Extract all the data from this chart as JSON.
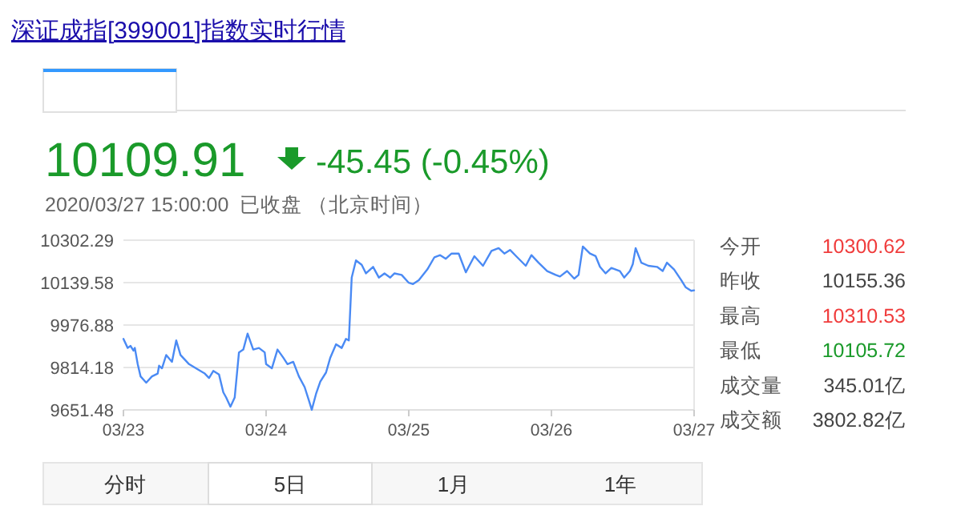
{
  "chart_data": {
    "type": "line",
    "title": "深证成指[399001]指数实时行情",
    "annotations": [
      "10109.91",
      "-45.45 (-0.45%)",
      "2020/03/27 15:00:00  已收盘 （北京时间）",
      "今开",
      "10300.62",
      "昨收",
      "10155.36",
      "最高",
      "10310.53",
      "最低",
      "10105.72",
      "成交量",
      "345.01亿",
      "成交额",
      "3802.82亿",
      "分时",
      "5日",
      "1月",
      "1年"
    ],
    "xlim": [
      "2020-03-23",
      "2020-03-27"
    ],
    "xticks": [
      {
        "value": "2020-03-23",
        "label": "03/23"
      },
      {
        "value": "2020-03-24",
        "label": "03/24"
      },
      {
        "value": "2020-03-25",
        "label": "03/25"
      },
      {
        "value": "2020-03-26",
        "label": "03/26"
      },
      {
        "value": "2020-03-27",
        "label": "03/27"
      }
    ],
    "ylim": [
      9651.48,
      10302.29
    ],
    "yticks": [
      {
        "value": 9651.48,
        "label": "9651.48"
      },
      {
        "value": 9814.18,
        "label": "9814.18"
      },
      {
        "value": 9976.88,
        "label": "9976.88"
      },
      {
        "value": 10139.58,
        "label": "10139.58"
      },
      {
        "value": 10302.29,
        "label": "10302.29"
      }
    ],
    "grid": "y",
    "marker": "none",
    "line_style": "solid",
    "series": [
      {
        "color": "#4a8af4",
        "x": [
          "2020-03-23T00:00",
          "2020-03-23T00:43",
          "2020-03-23T01:12",
          "2020-03-23T01:41",
          "2020-03-23T01:55",
          "2020-03-23T02:24",
          "2020-03-23T02:53",
          "2020-03-23T03:50",
          "2020-03-23T04:48",
          "2020-03-23T05:46",
          "2020-03-23T06:00",
          "2020-03-23T06:29",
          "2020-03-23T07:12",
          "2020-03-23T08:10",
          "2020-03-23T08:53",
          "2020-03-23T09:36",
          "2020-03-23T11:02",
          "2020-03-23T12:29",
          "2020-03-23T13:41",
          "2020-03-23T14:24",
          "2020-03-23T15:07",
          "2020-03-23T16:05",
          "2020-03-23T16:48",
          "2020-03-23T17:17",
          "2020-03-23T18:00",
          "2020-03-23T18:43",
          "2020-03-23T19:26",
          "2020-03-23T20:10",
          "2020-03-23T20:53",
          "2020-03-23T21:50",
          "2020-03-23T22:48",
          "2020-03-23T23:46",
          "2020-03-24T00:00",
          "2020-03-24T00:58",
          "2020-03-24T01:55",
          "2020-03-24T02:53",
          "2020-03-24T03:36",
          "2020-03-24T04:34",
          "2020-03-24T05:31",
          "2020-03-24T06:29",
          "2020-03-24T07:12",
          "2020-03-24T07:41",
          "2020-03-24T08:24",
          "2020-03-24T09:07",
          "2020-03-24T10:05",
          "2020-03-24T10:48",
          "2020-03-24T11:46",
          "2020-03-24T12:43",
          "2020-03-24T13:26",
          "2020-03-24T13:55",
          "2020-03-24T14:24",
          "2020-03-24T15:07",
          "2020-03-24T16:05",
          "2020-03-24T16:48",
          "2020-03-24T18:00",
          "2020-03-24T18:58",
          "2020-03-24T19:55",
          "2020-03-24T20:53",
          "2020-03-24T21:36",
          "2020-03-24T22:48",
          "2020-03-25T00:00",
          "2020-03-25T00:43",
          "2020-03-25T01:41",
          "2020-03-25T03:07",
          "2020-03-25T04:19",
          "2020-03-25T05:17",
          "2020-03-25T06:14",
          "2020-03-25T07:12",
          "2020-03-25T08:24",
          "2020-03-25T09:36",
          "2020-03-25T10:19",
          "2020-03-25T11:02",
          "2020-03-25T12:29",
          "2020-03-25T13:55",
          "2020-03-25T15:07",
          "2020-03-25T16:05",
          "2020-03-25T17:02",
          "2020-03-25T18:14",
          "2020-03-25T19:41",
          "2020-03-25T20:38",
          "2020-03-25T21:50",
          "2020-03-25T23:17",
          "2020-03-26T00:43",
          "2020-03-26T01:26",
          "2020-03-26T02:38",
          "2020-03-26T03:50",
          "2020-03-26T04:34",
          "2020-03-26T05:17",
          "2020-03-26T06:29",
          "2020-03-26T07:26",
          "2020-03-26T08:10",
          "2020-03-26T09:07",
          "2020-03-26T10:05",
          "2020-03-26T11:31",
          "2020-03-26T12:14",
          "2020-03-26T13:12",
          "2020-03-26T13:41",
          "2020-03-26T14:10",
          "2020-03-26T15:07",
          "2020-03-26T16:19",
          "2020-03-26T17:46",
          "2020-03-26T18:43",
          "2020-03-26T19:26",
          "2020-03-26T20:38",
          "2020-03-26T21:50",
          "2020-03-26T22:34",
          "2020-03-26T23:31",
          "2020-03-27T00:00"
        ],
        "values": [
          9924,
          9889,
          9897,
          9879,
          9889,
          9827,
          9780,
          9756,
          9780,
          9791,
          9821,
          9811,
          9862,
          9836,
          9918,
          9862,
          9827,
          9807,
          9791,
          9774,
          9801,
          9787,
          9719,
          9699,
          9664,
          9699,
          9872,
          9883,
          9944,
          9883,
          9889,
          9872,
          9827,
          9811,
          9883,
          9852,
          9827,
          9836,
          9780,
          9739,
          9688,
          9652,
          9713,
          9760,
          9795,
          9852,
          9903,
          9889,
          9924,
          9918,
          10159,
          10225,
          10208,
          10175,
          10200,
          10159,
          10175,
          10159,
          10175,
          10169,
          10139,
          10134,
          10149,
          10190,
          10237,
          10245,
          10231,
          10251,
          10251,
          10179,
          10210,
          10241,
          10204,
          10261,
          10272,
          10251,
          10265,
          10237,
          10204,
          10245,
          10216,
          10184,
          10169,
          10163,
          10184,
          10155,
          10169,
          10278,
          10251,
          10241,
          10200,
          10175,
          10196,
          10184,
          10159,
          10184,
          10210,
          10272,
          10216,
          10204,
          10200,
          10184,
          10216,
          10190,
          10149,
          10122,
          10108,
          10110
        ]
      }
    ]
  }
}
